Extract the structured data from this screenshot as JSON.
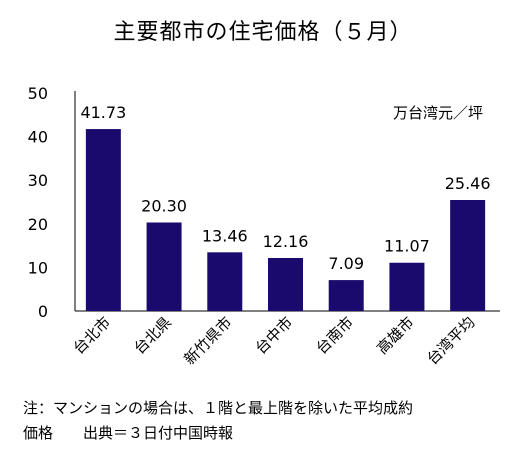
{
  "chart_data": {
    "type": "bar",
    "title": "主要都市の住宅価格（５月）",
    "unit_label": "万台湾元／坪",
    "categories": [
      "台北市",
      "台北県",
      "新竹県市",
      "台中市",
      "台南市",
      "高雄市",
      "台湾平均"
    ],
    "values": [
      41.73,
      20.3,
      13.46,
      12.16,
      7.09,
      11.07,
      25.46
    ],
    "value_labels": [
      "41.73",
      "20.30",
      "13.46",
      "12.16",
      "7.09",
      "11.07",
      "25.46"
    ],
    "y_ticks": [
      "0",
      "10",
      "20",
      "30",
      "40",
      "50"
    ],
    "ylim": [
      0,
      50
    ],
    "bar_color": "#1b0a6e",
    "grid": false
  },
  "notes": {
    "line1": "注：マンションの場合は、１階と最上階を除いた平均成約",
    "line2": "価格　　出典＝３日付中国時報"
  }
}
